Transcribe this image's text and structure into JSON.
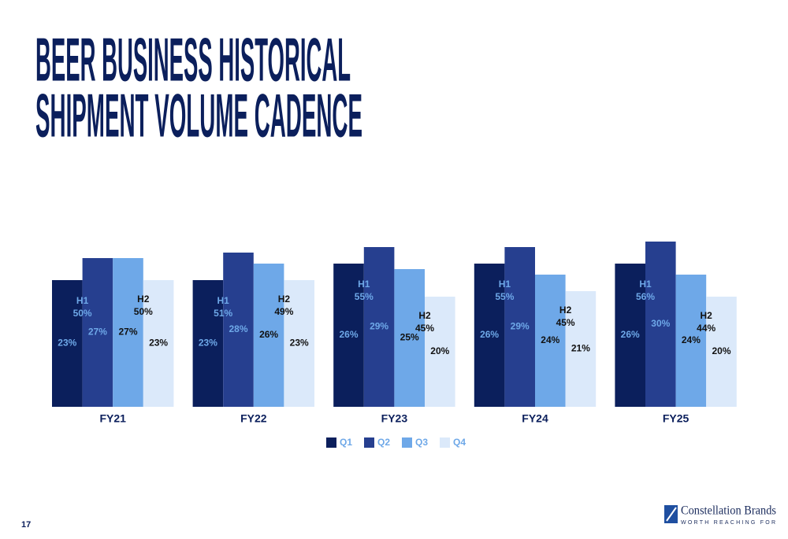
{
  "title": [
    "BEER BUSINESS HISTORICAL",
    "SHIPMENT VOLUME CADENCE"
  ],
  "chart_data": {
    "type": "bar",
    "categories": [
      "FY21",
      "FY22",
      "FY23",
      "FY24",
      "FY25"
    ],
    "series": [
      {
        "name": "Q1",
        "color": "#0b1f5c",
        "values": [
          23,
          23,
          26,
          26,
          26
        ],
        "value_labels": [
          "23%",
          "23%",
          "26%",
          "26%",
          "26%"
        ]
      },
      {
        "name": "Q2",
        "color": "#263f8f",
        "values": [
          27,
          28,
          29,
          29,
          30
        ],
        "value_labels": [
          "27%",
          "28%",
          "29%",
          "29%",
          "30%"
        ]
      },
      {
        "name": "Q3",
        "color": "#6ea8e8",
        "values": [
          27,
          26,
          25,
          24,
          24
        ],
        "value_labels": [
          "27%",
          "26%",
          "25%",
          "24%",
          "24%"
        ]
      },
      {
        "name": "Q4",
        "color": "#dbe9fa",
        "values": [
          23,
          23,
          20,
          21,
          20
        ],
        "value_labels": [
          "23%",
          "23%",
          "20%",
          "21%",
          "20%"
        ]
      }
    ],
    "halves": [
      {
        "name": "H1",
        "values": [
          50,
          51,
          55,
          55,
          56
        ],
        "value_labels": [
          "50%",
          "51%",
          "55%",
          "55%",
          "56%"
        ]
      },
      {
        "name": "H2",
        "values": [
          50,
          49,
          45,
          45,
          44
        ],
        "value_labels": [
          "50%",
          "49%",
          "45%",
          "45%",
          "44%"
        ]
      }
    ],
    "legend": "bottom"
  },
  "page_number": "17",
  "logo": {
    "name": "Constellation Brands",
    "tagline": "WORTH REACHING FOR"
  }
}
